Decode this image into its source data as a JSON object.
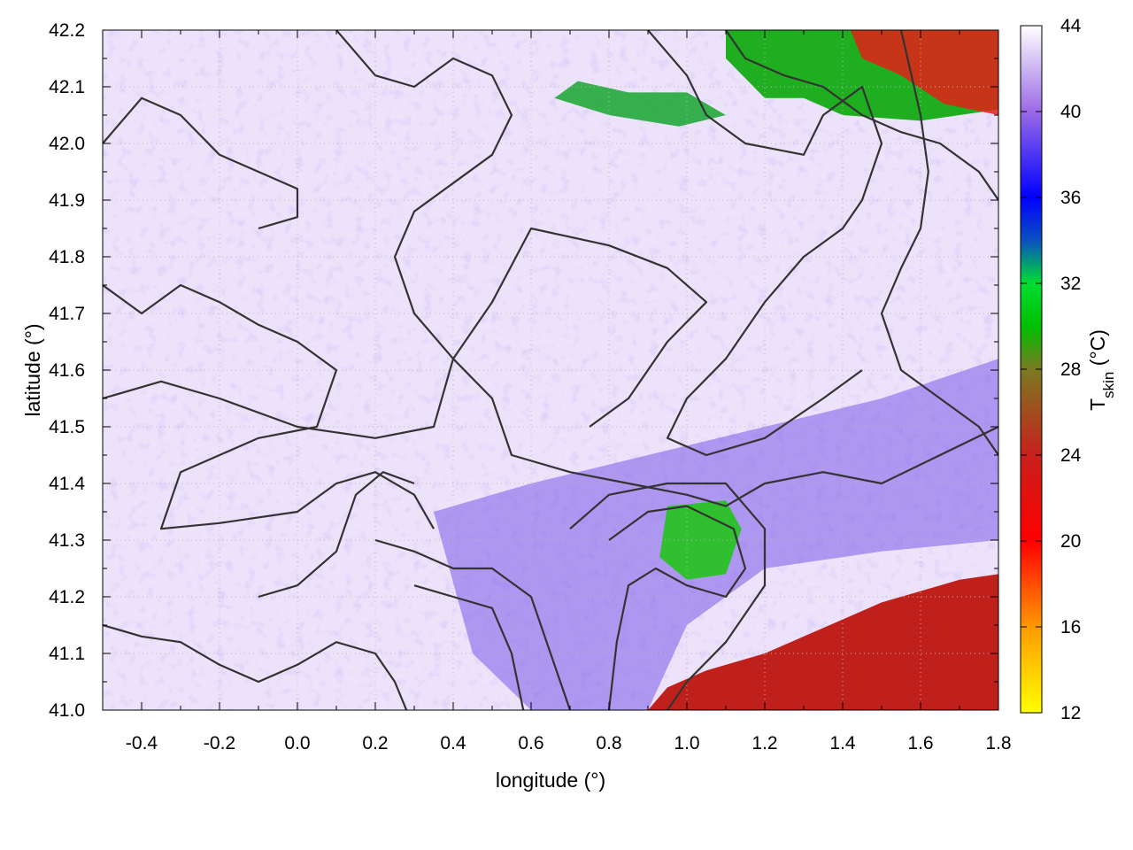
{
  "chart_data": {
    "type": "heatmap",
    "title": "",
    "xlabel": "longitude (°)",
    "ylabel": "latitude (°)",
    "xlim": [
      -0.5,
      1.8
    ],
    "ylim": [
      41.0,
      42.2
    ],
    "x_ticks": [
      -0.4,
      -0.2,
      0.0,
      0.2,
      0.4,
      0.6,
      0.8,
      1.0,
      1.2,
      1.4,
      1.6,
      1.8
    ],
    "x_tick_labels": [
      "-0.4",
      "-0.2",
      "0.0",
      "0.2",
      "0.4",
      "0.6",
      "0.8",
      "1.0",
      "1.2",
      "1.4",
      "1.6",
      "1.8"
    ],
    "y_ticks": [
      41.0,
      41.1,
      41.2,
      41.3,
      41.4,
      41.5,
      41.6,
      41.7,
      41.8,
      41.9,
      42.0,
      42.1,
      42.2
    ],
    "y_tick_labels": [
      "41.0",
      "41.1",
      "41.2",
      "41.3",
      "41.4",
      "41.5",
      "41.6",
      "41.7",
      "41.8",
      "41.9",
      "42.0",
      "42.1",
      "42.2"
    ],
    "grid": true,
    "colorbar": {
      "label_main": "T",
      "label_sub": "skin",
      "label_unit": " (°C)",
      "range": [
        12,
        44
      ],
      "ticks": [
        12,
        16,
        20,
        24,
        28,
        32,
        36,
        40,
        44
      ],
      "tick_labels": [
        "12",
        "16",
        "20",
        "24",
        "28",
        "32",
        "36",
        "40",
        "44"
      ],
      "stops": [
        {
          "value": 12,
          "color": "#ffff00"
        },
        {
          "value": 16,
          "color": "#ff9900"
        },
        {
          "value": 20,
          "color": "#ff0000"
        },
        {
          "value": 24,
          "color": "#c8201c"
        },
        {
          "value": 28,
          "color": "#7a7a22"
        },
        {
          "value": 30,
          "color": "#00c000"
        },
        {
          "value": 32,
          "color": "#00dd33"
        },
        {
          "value": 34,
          "color": "#0a50c0"
        },
        {
          "value": 36,
          "color": "#0000ff"
        },
        {
          "value": 40,
          "color": "#9a6ae6"
        },
        {
          "value": 44,
          "color": "#ffffff"
        }
      ]
    },
    "features": {
      "sea_color": "#c0201c",
      "sea_boundary": [
        [
          0.9,
          41.0
        ],
        [
          0.95,
          41.04
        ],
        [
          1.05,
          41.07
        ],
        [
          1.2,
          41.1
        ],
        [
          1.3,
          41.13
        ],
        [
          1.4,
          41.16
        ],
        [
          1.5,
          41.19
        ],
        [
          1.6,
          41.21
        ],
        [
          1.7,
          41.23
        ],
        [
          1.8,
          41.24
        ]
      ],
      "mountain_ne": [
        [
          1.1,
          42.2
        ],
        [
          1.8,
          42.2
        ],
        [
          1.8,
          42.06
        ],
        [
          1.6,
          42.04
        ],
        [
          1.4,
          42.05
        ],
        [
          1.3,
          42.08
        ],
        [
          1.2,
          42.08
        ],
        [
          1.1,
          42.15
        ]
      ],
      "hot_patch_ne": [
        [
          1.42,
          42.2
        ],
        [
          1.8,
          42.2
        ],
        [
          1.8,
          42.05
        ],
        [
          1.66,
          42.07
        ],
        [
          1.55,
          42.12
        ],
        [
          1.45,
          42.15
        ]
      ],
      "green_patch_center": [
        [
          0.95,
          41.36
        ],
        [
          1.1,
          41.37
        ],
        [
          1.14,
          41.32
        ],
        [
          1.1,
          41.24
        ],
        [
          1.0,
          41.23
        ],
        [
          0.93,
          41.27
        ]
      ],
      "green_patch_strip": [
        [
          0.66,
          42.08
        ],
        [
          0.8,
          42.05
        ],
        [
          0.98,
          42.03
        ],
        [
          1.1,
          42.05
        ],
        [
          1.0,
          42.09
        ],
        [
          0.85,
          42.09
        ],
        [
          0.72,
          42.11
        ]
      ],
      "blue_band": [
        [
          0.35,
          41.35
        ],
        [
          0.6,
          41.4
        ],
        [
          0.9,
          41.45
        ],
        [
          1.2,
          41.5
        ],
        [
          1.5,
          41.55
        ],
        [
          1.8,
          41.62
        ],
        [
          1.8,
          41.3
        ],
        [
          1.5,
          41.28
        ],
        [
          1.2,
          41.25
        ],
        [
          1.0,
          41.15
        ],
        [
          0.9,
          41.0
        ],
        [
          0.6,
          41.0
        ],
        [
          0.45,
          41.1
        ]
      ]
    },
    "contours": [
      [
        [
          -0.5,
          42.0
        ],
        [
          -0.4,
          42.08
        ],
        [
          -0.3,
          42.05
        ],
        [
          -0.2,
          41.98
        ],
        [
          -0.1,
          41.95
        ],
        [
          0.0,
          41.92
        ],
        [
          0.0,
          41.87
        ],
        [
          -0.1,
          41.85
        ]
      ],
      [
        [
          -0.5,
          41.75
        ],
        [
          -0.4,
          41.7
        ],
        [
          -0.3,
          41.75
        ],
        [
          -0.2,
          41.72
        ],
        [
          -0.1,
          41.68
        ],
        [
          0.0,
          41.65
        ],
        [
          0.1,
          41.6
        ],
        [
          0.05,
          41.5
        ],
        [
          -0.1,
          41.48
        ],
        [
          -0.2,
          41.45
        ],
        [
          -0.3,
          41.42
        ],
        [
          -0.35,
          41.32
        ],
        [
          -0.2,
          41.33
        ],
        [
          0.0,
          41.35
        ],
        [
          0.1,
          41.4
        ],
        [
          0.2,
          41.42
        ],
        [
          0.3,
          41.38
        ],
        [
          0.35,
          41.32
        ]
      ],
      [
        [
          -0.5,
          41.55
        ],
        [
          -0.35,
          41.58
        ],
        [
          -0.2,
          41.55
        ],
        [
          0.0,
          41.5
        ],
        [
          0.2,
          41.48
        ],
        [
          0.35,
          41.5
        ],
        [
          0.4,
          41.62
        ],
        [
          0.5,
          41.72
        ],
        [
          0.6,
          41.85
        ],
        [
          0.8,
          41.82
        ],
        [
          0.95,
          41.78
        ],
        [
          1.05,
          41.72
        ],
        [
          0.95,
          41.65
        ],
        [
          0.85,
          41.55
        ],
        [
          0.75,
          41.5
        ]
      ],
      [
        [
          0.1,
          42.2
        ],
        [
          0.2,
          42.12
        ],
        [
          0.3,
          42.1
        ],
        [
          0.4,
          42.15
        ],
        [
          0.5,
          42.12
        ],
        [
          0.55,
          42.05
        ],
        [
          0.5,
          41.98
        ],
        [
          0.4,
          41.93
        ],
        [
          0.3,
          41.88
        ],
        [
          0.25,
          41.8
        ],
        [
          0.3,
          41.7
        ],
        [
          0.4,
          41.62
        ],
        [
          0.5,
          41.55
        ],
        [
          0.55,
          41.45
        ],
        [
          0.7,
          41.42
        ],
        [
          0.85,
          41.4
        ],
        [
          1.0,
          41.38
        ],
        [
          1.1,
          41.36
        ],
        [
          1.2,
          41.4
        ],
        [
          1.35,
          41.42
        ],
        [
          1.5,
          41.4
        ],
        [
          1.65,
          41.45
        ],
        [
          1.8,
          41.5
        ]
      ],
      [
        [
          0.8,
          41.3
        ],
        [
          0.9,
          41.35
        ],
        [
          1.0,
          41.36
        ],
        [
          1.12,
          41.32
        ],
        [
          1.15,
          41.25
        ],
        [
          1.1,
          41.2
        ],
        [
          1.0,
          41.22
        ],
        [
          0.92,
          41.25
        ],
        [
          0.85,
          41.22
        ],
        [
          0.82,
          41.12
        ],
        [
          0.8,
          41.0
        ]
      ],
      [
        [
          0.7,
          41.32
        ],
        [
          0.8,
          41.38
        ],
        [
          0.95,
          41.4
        ],
        [
          1.1,
          41.4
        ],
        [
          1.2,
          41.32
        ],
        [
          1.2,
          41.22
        ],
        [
          1.1,
          41.12
        ],
        [
          1.0,
          41.05
        ],
        [
          0.95,
          41.0
        ]
      ],
      [
        [
          0.3,
          41.22
        ],
        [
          0.4,
          41.2
        ],
        [
          0.5,
          41.18
        ],
        [
          0.55,
          41.1
        ],
        [
          0.58,
          41.0
        ]
      ],
      [
        [
          0.2,
          41.3
        ],
        [
          0.3,
          41.28
        ],
        [
          0.4,
          41.25
        ],
        [
          0.5,
          41.25
        ],
        [
          0.6,
          41.2
        ],
        [
          0.65,
          41.1
        ],
        [
          0.7,
          41.0
        ]
      ],
      [
        [
          0.9,
          42.2
        ],
        [
          1.0,
          42.12
        ],
        [
          1.05,
          42.05
        ],
        [
          1.15,
          42.0
        ],
        [
          1.3,
          41.98
        ],
        [
          1.35,
          42.05
        ],
        [
          1.45,
          42.1
        ],
        [
          1.5,
          42.0
        ],
        [
          1.45,
          41.9
        ],
        [
          1.4,
          41.85
        ],
        [
          1.3,
          41.8
        ],
        [
          1.2,
          41.72
        ],
        [
          1.1,
          41.62
        ],
        [
          1.0,
          41.55
        ],
        [
          0.95,
          41.48
        ],
        [
          1.05,
          41.45
        ],
        [
          1.2,
          41.48
        ],
        [
          1.35,
          41.55
        ],
        [
          1.45,
          41.6
        ]
      ],
      [
        [
          1.55,
          42.2
        ],
        [
          1.6,
          42.05
        ],
        [
          1.62,
          41.95
        ],
        [
          1.6,
          41.85
        ],
        [
          1.55,
          41.78
        ],
        [
          1.5,
          41.7
        ],
        [
          1.55,
          41.6
        ],
        [
          1.65,
          41.55
        ],
        [
          1.75,
          41.5
        ],
        [
          1.8,
          41.45
        ]
      ],
      [
        [
          1.1,
          42.2
        ],
        [
          1.15,
          42.15
        ],
        [
          1.25,
          42.12
        ],
        [
          1.35,
          42.1
        ],
        [
          1.45,
          42.05
        ],
        [
          1.55,
          42.02
        ],
        [
          1.65,
          42.0
        ],
        [
          1.75,
          41.95
        ],
        [
          1.8,
          41.9
        ]
      ],
      [
        [
          -0.1,
          41.2
        ],
        [
          0.0,
          41.22
        ],
        [
          0.1,
          41.28
        ],
        [
          0.15,
          41.38
        ],
        [
          0.22,
          41.42
        ],
        [
          0.3,
          41.4
        ]
      ],
      [
        [
          -0.5,
          41.15
        ],
        [
          -0.4,
          41.13
        ],
        [
          -0.3,
          41.12
        ],
        [
          -0.2,
          41.08
        ],
        [
          -0.1,
          41.05
        ],
        [
          0.0,
          41.08
        ],
        [
          0.1,
          41.12
        ],
        [
          0.2,
          41.1
        ],
        [
          0.25,
          41.05
        ],
        [
          0.28,
          41.0
        ]
      ]
    ]
  }
}
